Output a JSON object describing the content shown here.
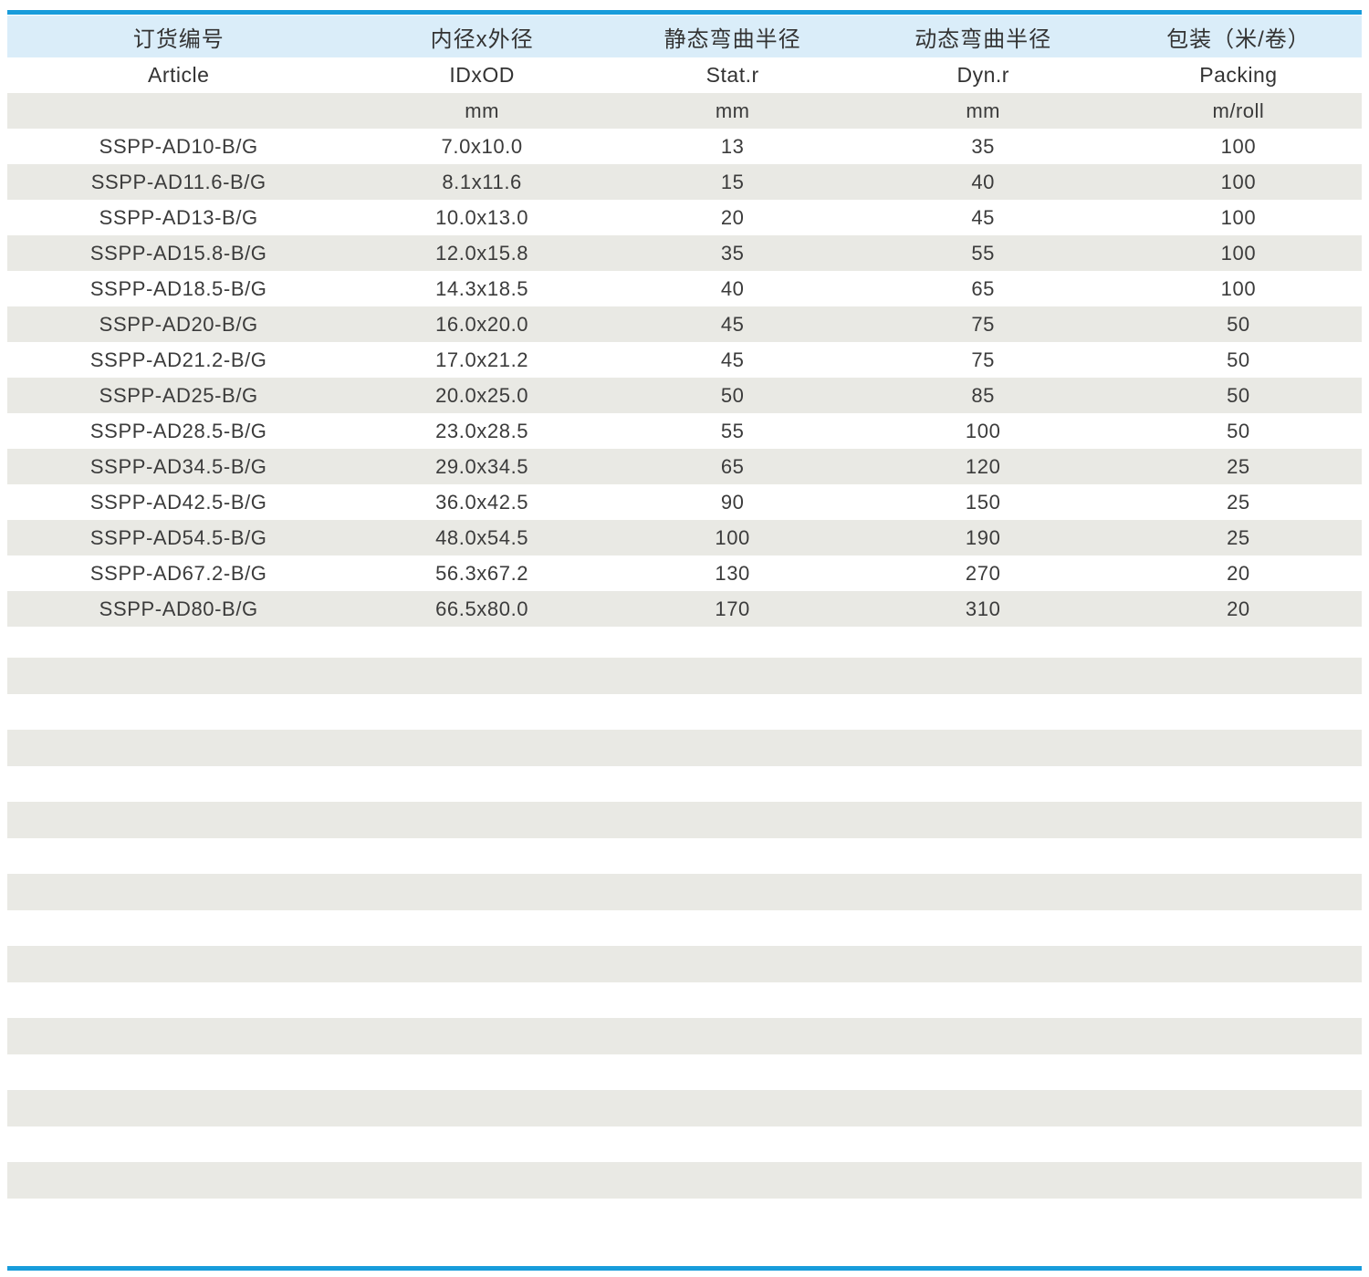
{
  "accent": {
    "rule_color": "#189cdb",
    "header_bg": "#daedf9",
    "stripe_bg": "#e9e9e4",
    "text_color": "#3b3b3b"
  },
  "table": {
    "columns": [
      {
        "id": "article",
        "zh": "订货编号",
        "en": "Article",
        "unit": ""
      },
      {
        "id": "id-od",
        "zh": "内径x外径",
        "en": "IDxOD",
        "unit": "mm"
      },
      {
        "id": "stat-r",
        "zh": "静态弯曲半径",
        "en": "Stat.r",
        "unit": "mm"
      },
      {
        "id": "dyn-r",
        "zh": "动态弯曲半径",
        "en": "Dyn.r",
        "unit": "mm"
      },
      {
        "id": "packing",
        "zh": "包装（米/卷）",
        "en": "Packing",
        "unit": "m/roll"
      }
    ],
    "rows": [
      [
        "SSPP-AD10-B/G",
        "7.0x10.0",
        "13",
        "35",
        "100"
      ],
      [
        "SSPP-AD11.6-B/G",
        "8.1x11.6",
        "15",
        "40",
        "100"
      ],
      [
        "SSPP-AD13-B/G",
        "10.0x13.0",
        "20",
        "45",
        "100"
      ],
      [
        "SSPP-AD15.8-B/G",
        "12.0x15.8",
        "35",
        "55",
        "100"
      ],
      [
        "SSPP-AD18.5-B/G",
        "14.3x18.5",
        "40",
        "65",
        "100"
      ],
      [
        "SSPP-AD20-B/G",
        "16.0x20.0",
        "45",
        "75",
        "50"
      ],
      [
        "SSPP-AD21.2-B/G",
        "17.0x21.2",
        "45",
        "75",
        "50"
      ],
      [
        "SSPP-AD25-B/G",
        "20.0x25.0",
        "50",
        "85",
        "50"
      ],
      [
        "SSPP-AD28.5-B/G",
        "23.0x28.5",
        "55",
        "100",
        "50"
      ],
      [
        "SSPP-AD34.5-B/G",
        "29.0x34.5",
        "65",
        "120",
        "25"
      ],
      [
        "SSPP-AD42.5-B/G",
        "36.0x42.5",
        "90",
        "150",
        "25"
      ],
      [
        "SSPP-AD54.5-B/G",
        "48.0x54.5",
        "100",
        "190",
        "25"
      ],
      [
        "SSPP-AD67.2-B/G",
        "56.3x67.2",
        "130",
        "270",
        "20"
      ],
      [
        "SSPP-AD80-B/G",
        "66.5x80.0",
        "170",
        "310",
        "20"
      ]
    ]
  }
}
